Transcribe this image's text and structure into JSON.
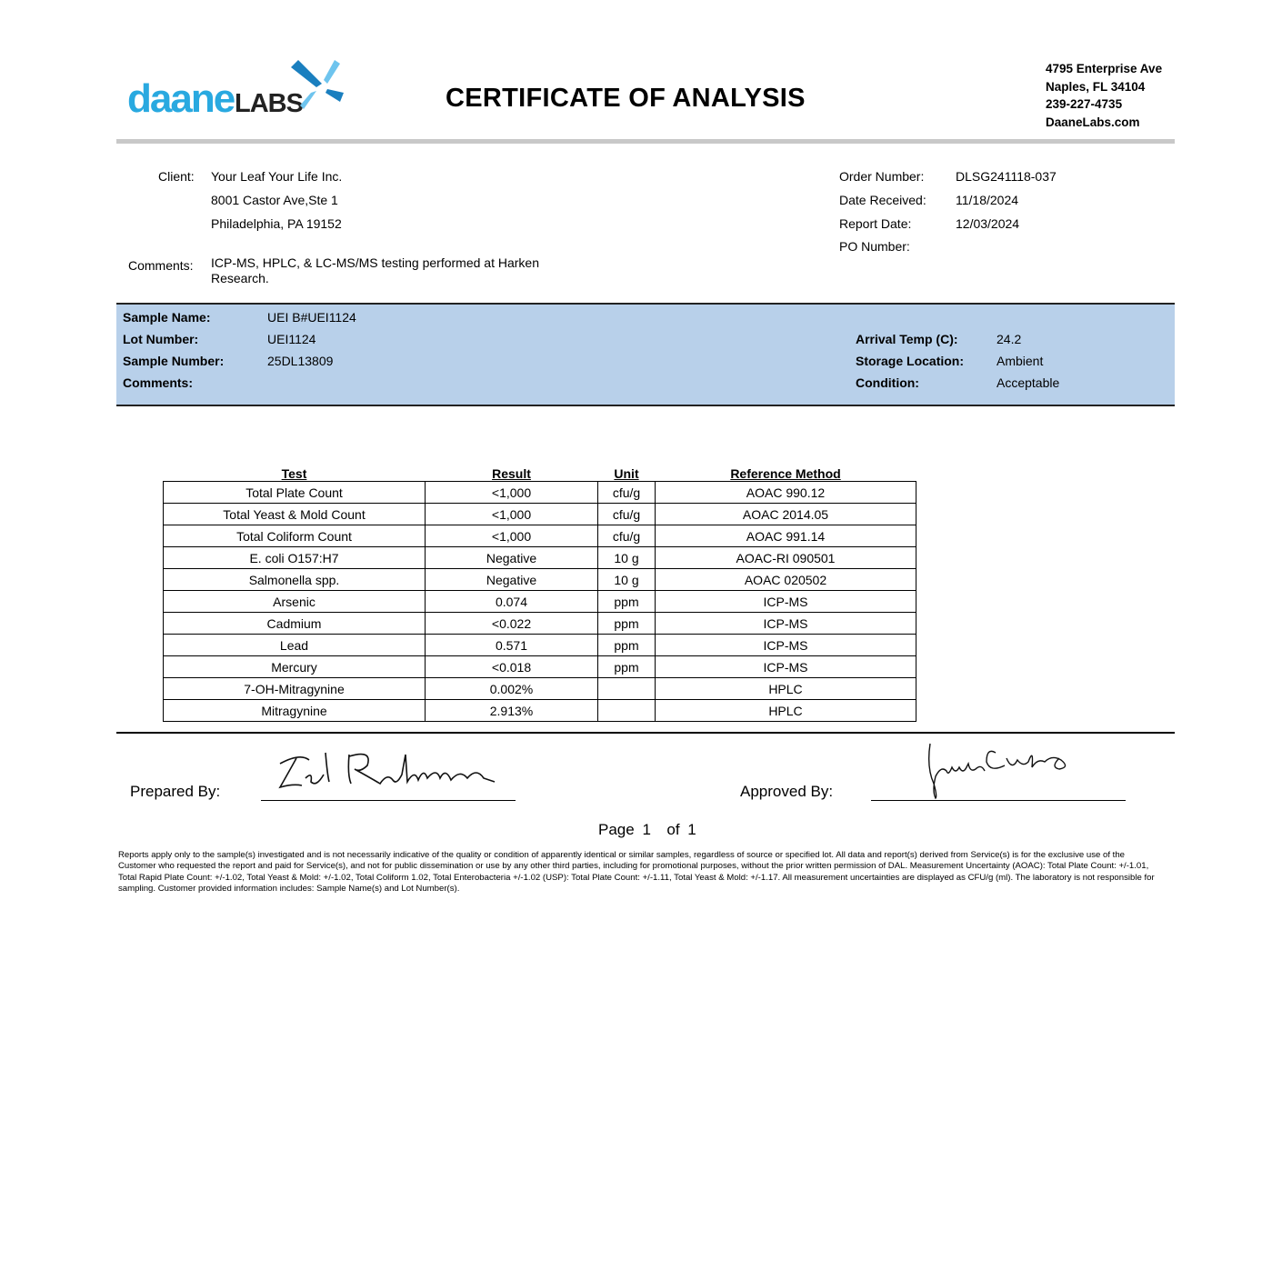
{
  "header": {
    "logo_text": "daaneLABS",
    "title": "CERTIFICATE OF ANALYSIS",
    "address": [
      "4795 Enterprise Ave",
      "Naples, FL 34104",
      "239-227-4735",
      "DaaneLabs.com"
    ]
  },
  "client": {
    "label": "Client:",
    "lines": [
      "Your Leaf Your Life Inc.",
      "8001 Castor Ave,Ste 1",
      "Philadelphia, PA 19152"
    ],
    "comments_label": "Comments:",
    "comments": "ICP-MS, HPLC, & LC-MS/MS testing performed at Harken Research."
  },
  "order": {
    "order_number_label": "Order Number:",
    "order_number": "DLSG241118-037",
    "date_received_label": "Date Received:",
    "date_received": "11/18/2024",
    "report_date_label": "Report Date:",
    "report_date": "12/03/2024",
    "po_number_label": "PO Number:"
  },
  "sample": {
    "name_label": "Sample Name:",
    "name": "UEI B#UEI1124",
    "lot_label": "Lot Number:",
    "lot": "UEI1124",
    "number_label": "Sample Number:",
    "number": "25DL13809",
    "comments_label": "Comments:",
    "arrival_temp_label": "Arrival Temp (C):",
    "arrival_temp": "24.2",
    "storage_label": "Storage Location:",
    "storage": "Ambient",
    "condition_label": "Condition:",
    "condition": "Acceptable",
    "band_color": "#b8d0ea"
  },
  "results": {
    "headers": [
      "Test",
      "Result",
      "Unit",
      "Reference Method"
    ],
    "rows": [
      [
        "Total Plate Count",
        "<1,000",
        "cfu/g",
        "AOAC 990.12"
      ],
      [
        "Total Yeast & Mold Count",
        "<1,000",
        "cfu/g",
        "AOAC 2014.05"
      ],
      [
        "Total Coliform Count",
        "<1,000",
        "cfu/g",
        "AOAC 991.14"
      ],
      [
        "E. coli O157:H7",
        "Negative",
        "10 g",
        "AOAC-RI 090501"
      ],
      [
        "Salmonella spp.",
        "Negative",
        "10 g",
        "AOAC 020502"
      ],
      [
        "Arsenic",
        "0.074",
        "ppm",
        "ICP-MS"
      ],
      [
        "Cadmium",
        "<0.022",
        "ppm",
        "ICP-MS"
      ],
      [
        "Lead",
        "0.571",
        "ppm",
        "ICP-MS"
      ],
      [
        "Mercury",
        "<0.018",
        "ppm",
        "ICP-MS"
      ],
      [
        "7-OH-Mitragynine",
        "0.002%",
        "",
        "HPLC"
      ],
      [
        "Mitragynine",
        "2.913%",
        "",
        "HPLC"
      ]
    ]
  },
  "signatures": {
    "prepared_label": "Prepared By:",
    "approved_label": "Approved By:"
  },
  "page": {
    "page_label": "Page",
    "current": "1",
    "of_label": "of",
    "total": "1"
  },
  "footer": "Reports apply only to the sample(s) investigated and is not necessarily indicative of the quality or condition of apparently identical or similar samples, regardless of source or specified lot. All data and report(s) derived from Service(s) is for the exclusive use of the Customer who requested the report and paid for Service(s), and not for public dissemination or use by any other third parties, including for promotional purposes, without the prior written permission of DAL. Measurement Uncertainty (AOAC): Total Plate Count: +/-1.01, Total Rapid Plate Count: +/-1.02, Total Yeast & Mold: +/-1.02, Total Coliform 1.02, Total Enterobacteria +/-1.02 (USP): Total Plate Count: +/-1.11, Total Yeast & Mold: +/-1.17. All measurement uncertainties are displayed as CFU/g (ml). The laboratory is not responsible for sampling. Customer provided information includes: Sample Name(s) and Lot Number(s).",
  "colors": {
    "logo_blue": "#29a9e0",
    "logo_dark": "#222222",
    "rule_gray": "#c8c8c8"
  }
}
